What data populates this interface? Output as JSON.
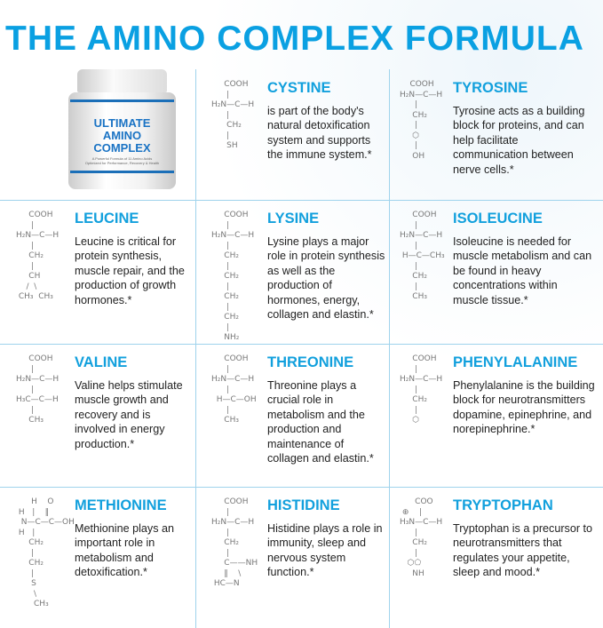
{
  "title": "THE AMINO COMPLEX FORMULA",
  "colors": {
    "accent": "#0aa0e2",
    "grid": "#9fd3ec",
    "text": "#222222"
  },
  "product": {
    "name_line1": "ULTIMATE",
    "name_line2": "AMINO",
    "name_line3": "COMPLEX",
    "tagline": "A Powerful Formula of 11 Amino Acids Optimized for Performance, Recovery & Health"
  },
  "aminos": [
    {
      "name": "CYSTINE",
      "description": "is part of the body's natural detoxification system and supports the immune system.*",
      "structure": "     COOH\n      |\nH₂N—C—H\n      |\n      CH₂\n      |\n      SH"
    },
    {
      "name": "TYROSINE",
      "description": "Tyrosine acts as a building block for proteins, and can help facilitate communication between nerve cells.*",
      "structure": "    COOH\nH₂N—C—H\n      |\n     CH₂\n      |\n     ⬡\n      |\n     OH"
    },
    {
      "name": "LEUCINE",
      "description": "Leucine is critical for protein synthesis, muscle repair, and the production of growth hormones.*",
      "structure": "     COOH\n      |\nH₂N—C—H\n      |\n     CH₂\n      |\n     CH\n    /  \\\n CH₃  CH₃"
    },
    {
      "name": "LYSINE",
      "description": "Lysine plays a major role in protein synthesis as well as the production of hormones, energy, collagen and elastin.*",
      "structure": "     COOH\n      |\nH₂N—C—H\n      |\n     CH₂\n      |\n     CH₂\n      |\n     CH₂\n      |\n     CH₂\n      |\n     NH₂"
    },
    {
      "name": "ISOLEUCINE",
      "description": "Isoleucine is needed for muscle metabolism and can be found in heavy concentrations within muscle tissue.*",
      "structure": "     COOH\n      |\nH₂N—C—H\n      |\n H—C—CH₃\n      |\n     CH₂\n      |\n     CH₃"
    },
    {
      "name": "VALINE",
      "description": "Valine helps stimulate muscle growth and recovery and is involved in energy production.*",
      "structure": "     COOH\n      |\nH₂N—C—H\n      |\nH₃C—C—H\n      |\n     CH₃"
    },
    {
      "name": "THREONINE",
      "description": "Threonine plays a crucial role in metabolism and the production and maintenance of collagen and elastin.*",
      "structure": "     COOH\n      |\nH₂N—C—H\n      |\n  H—C—OH\n      |\n     CH₃"
    },
    {
      "name": "PHENYLALANINE",
      "description": "Phenylalanine is the building block for neurotransmitters dopamine, epinephrine, and norepinephrine.*",
      "structure": "     COOH\n      |\nH₂N—C—H\n      |\n     CH₂\n      |\n     ⬡"
    },
    {
      "name": "METHIONINE",
      "description": "Methionine plays an important role in metabolism and detoxification.*",
      "structure": "      H    O\n H   |    ‖\n  N—C—C—OH\n H   |\n     CH₂\n      |\n     CH₂\n      |\n      S\n       \\\n       CH₃"
    },
    {
      "name": "HISTIDINE",
      "description": "Histidine plays a role in immunity, sleep and nervous system function.*",
      "structure": "     COOH\n      |\nH₂N—C—H\n      |\n     CH₂\n      |\n     C——NH\n     ‖    \\\n HC—N"
    },
    {
      "name": "TRYPTOPHAN",
      "description": "Tryptophan is a precursor to neurotransmitters that regulates your appetite, sleep and mood.*",
      "structure": "      COO\n ⊕    |\nH₃N—C—H\n      |\n     CH₂\n      |\n   ⬡⬠\n     NH"
    }
  ]
}
